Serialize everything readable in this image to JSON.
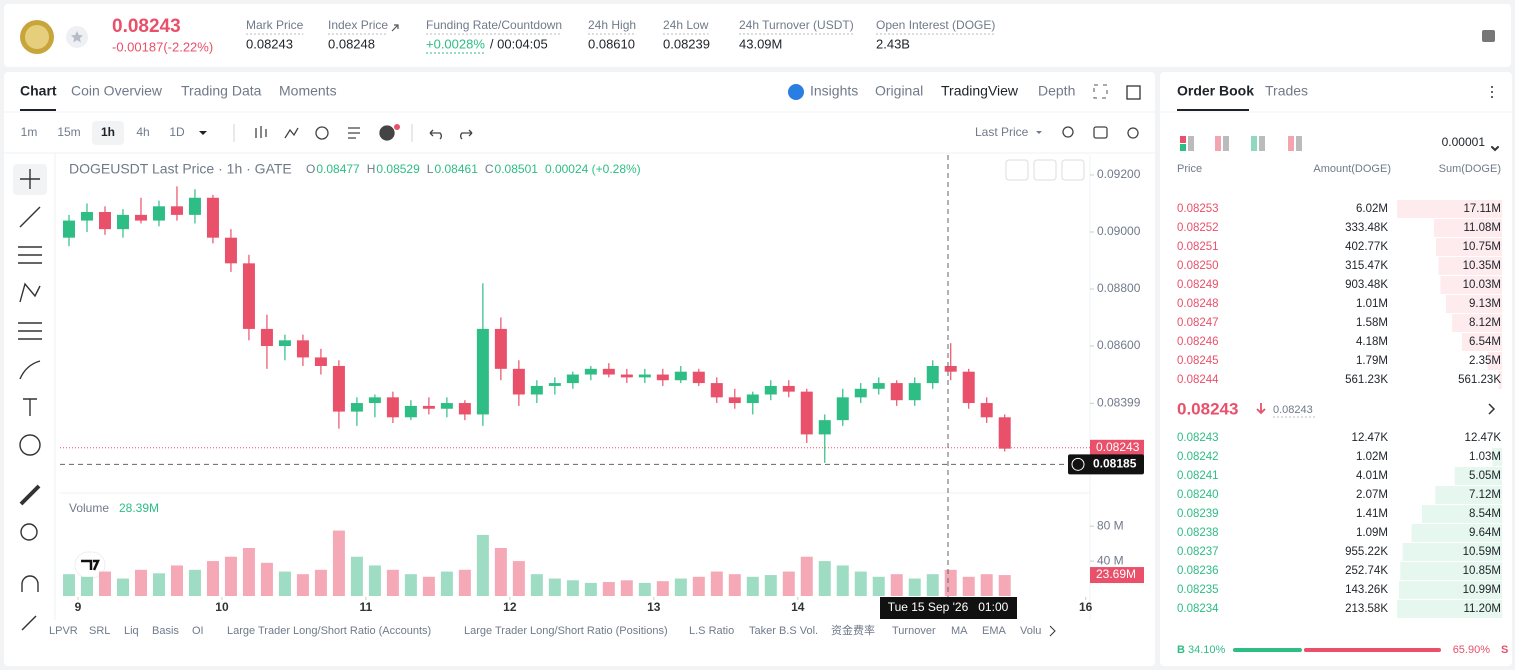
{
  "header": {
    "price": "0.08243",
    "change": "-0.00187(-2.22%)",
    "stats": [
      {
        "label": "Mark Price",
        "value": "0.08243"
      },
      {
        "label": "Index Price",
        "value": "0.08248"
      },
      {
        "label": "Funding Rate/Countdown",
        "value": "+0.0028%",
        "countdown": "/ 00:04:05"
      },
      {
        "label": "24h High",
        "value": "0.08610"
      },
      {
        "label": "24h Low",
        "value": "0.08239"
      },
      {
        "label": "24h Turnover (USDT)",
        "value": "43.09M"
      },
      {
        "label": "Open Interest (DOGE)",
        "value": "2.43B"
      }
    ]
  },
  "tabs": [
    "Chart",
    "Coin Overview",
    "Trading Data",
    "Moments"
  ],
  "view_tabs": [
    "Insights",
    "Original",
    "TradingView",
    "Depth"
  ],
  "intervals": [
    "1m",
    "15m",
    "1h",
    "4h",
    "1D"
  ],
  "price_type": "Last Price",
  "legend": {
    "symbol": "DOGEUSDT Last Price · 1h · GATE",
    "o_label": "O",
    "o": "0.08477",
    "h_label": "H",
    "h": "0.08529",
    "l_label": "L",
    "l": "0.08461",
    "c_label": "C",
    "c": "0.08501",
    "change": "0.00024 (+0.28%)"
  },
  "last_price_tag": 0.08243,
  "crosshair_price": 0.08185,
  "crosshair_time": "Tue 15 Sep '26   01:00",
  "indicators": [
    "LPVR",
    "SRL",
    "Liq",
    "Basis",
    "OI",
    "Large Trader Long/Short Ratio (Accounts)",
    "Large Trader Long/Short Ratio (Positions)",
    "L.S Ratio",
    "Taker B.S Vol.",
    "资金费率",
    "Turnover",
    "MA",
    "EMA",
    "Volu"
  ],
  "chart_data": {
    "type": "candlestick",
    "up_color": "#2ebd85",
    "down_color": "#e9506a",
    "x": [
      8.9375,
      9.0625,
      9.1875,
      9.3125,
      9.4375,
      9.5625,
      9.6875,
      9.8125,
      9.9375,
      10.0625,
      10.1875,
      10.3125,
      10.4375,
      10.5625,
      10.6875,
      10.8125,
      10.9375,
      11.0625,
      11.1875,
      11.3125,
      11.4375,
      11.5625,
      11.6875,
      11.8125,
      11.9375,
      12.0625,
      12.1875,
      12.3125,
      12.4375,
      12.5625,
      12.6875,
      12.8125,
      12.9375,
      13.0625,
      13.1875,
      13.3125,
      13.4375,
      13.5625,
      13.6875,
      13.8125,
      13.9375,
      14.0625,
      14.1875,
      14.3125,
      14.4375,
      14.5625,
      14.6875,
      14.8125,
      14.9375,
      15.0625,
      15.1875,
      15.3125,
      15.4375
    ],
    "open": [
      0.0898,
      0.0904,
      0.0907,
      0.0901,
      0.0906,
      0.0904,
      0.0909,
      0.0906,
      0.0912,
      0.0898,
      0.0889,
      0.0866,
      0.086,
      0.0862,
      0.0856,
      0.0853,
      0.0837,
      0.084,
      0.0842,
      0.0835,
      0.0839,
      0.0838,
      0.084,
      0.0836,
      0.0866,
      0.0852,
      0.0843,
      0.0846,
      0.0847,
      0.085,
      0.0852,
      0.085,
      0.0849,
      0.085,
      0.0848,
      0.0851,
      0.0847,
      0.0842,
      0.084,
      0.0843,
      0.0846,
      0.0844,
      0.0829,
      0.0834,
      0.0842,
      0.0845,
      0.0847,
      0.0841,
      0.0847,
      0.0853,
      0.0851,
      0.084,
      0.0835
    ],
    "high": [
      0.0906,
      0.091,
      0.0909,
      0.0908,
      0.0912,
      0.0911,
      0.0916,
      0.0915,
      0.0913,
      0.0901,
      0.0892,
      0.0871,
      0.0864,
      0.0864,
      0.0859,
      0.0855,
      0.0842,
      0.0843,
      0.0844,
      0.0841,
      0.0842,
      0.0842,
      0.0841,
      0.0882,
      0.087,
      0.0855,
      0.0848,
      0.0849,
      0.0851,
      0.0853,
      0.0854,
      0.0852,
      0.0852,
      0.0852,
      0.0853,
      0.0852,
      0.0849,
      0.0845,
      0.0844,
      0.0848,
      0.0848,
      0.0845,
      0.0836,
      0.0845,
      0.0847,
      0.0849,
      0.0848,
      0.0849,
      0.0855,
      0.0861,
      0.0852,
      0.0842,
      0.0836
    ],
    "low": [
      0.0895,
      0.09,
      0.0899,
      0.0898,
      0.0903,
      0.0902,
      0.0904,
      0.0903,
      0.0896,
      0.0886,
      0.0862,
      0.0852,
      0.0855,
      0.0853,
      0.085,
      0.0831,
      0.0832,
      0.0835,
      0.0833,
      0.0834,
      0.0836,
      0.0835,
      0.0834,
      0.0832,
      0.0848,
      0.0839,
      0.084,
      0.0843,
      0.0845,
      0.0848,
      0.0849,
      0.0847,
      0.0847,
      0.0846,
      0.0847,
      0.0846,
      0.084,
      0.0838,
      0.0836,
      0.0841,
      0.0842,
      0.0826,
      0.0819,
      0.0832,
      0.084,
      0.0843,
      0.0839,
      0.0839,
      0.0845,
      0.0848,
      0.0838,
      0.0833,
      0.0823
    ],
    "close": [
      0.0904,
      0.0907,
      0.0901,
      0.0906,
      0.0904,
      0.0909,
      0.0906,
      0.0912,
      0.0898,
      0.0889,
      0.0866,
      0.086,
      0.0862,
      0.0856,
      0.0853,
      0.0837,
      0.084,
      0.0842,
      0.0835,
      0.0839,
      0.0838,
      0.084,
      0.0836,
      0.0866,
      0.0852,
      0.0843,
      0.0846,
      0.0847,
      0.085,
      0.0852,
      0.085,
      0.0849,
      0.085,
      0.0848,
      0.0851,
      0.0847,
      0.0842,
      0.084,
      0.0843,
      0.0846,
      0.0844,
      0.0829,
      0.0834,
      0.0842,
      0.0845,
      0.0847,
      0.0841,
      0.0847,
      0.0853,
      0.0851,
      0.084,
      0.0835,
      0.0824
    ],
    "xlim": [
      8.875,
      16.03
    ],
    "xticks": [
      9,
      10,
      11,
      12,
      13,
      14,
      15,
      16
    ],
    "ylim": [
      0.08095,
      0.0927
    ],
    "yticks": [
      {
        "value": 0.092,
        "label": "0.09200"
      },
      {
        "value": 0.09,
        "label": "0.09000"
      },
      {
        "value": 0.088,
        "label": "0.08800"
      },
      {
        "value": 0.086,
        "label": "0.08600"
      },
      0.08399
    ],
    "volume": {
      "name": "Volume",
      "legend_value": "28.39M",
      "last_tag": "23.69M",
      "values": [
        25,
        22,
        28,
        20,
        30,
        26,
        35,
        30,
        40,
        45,
        55,
        38,
        28,
        25,
        30,
        75,
        45,
        35,
        30,
        25,
        22,
        28,
        30,
        70,
        55,
        40,
        25,
        20,
        18,
        15,
        16,
        18,
        15,
        17,
        20,
        22,
        28,
        25,
        22,
        24,
        28,
        45,
        40,
        35,
        28,
        22,
        25,
        20,
        25,
        30,
        22,
        25,
        24
      ],
      "ylim": [
        0,
        110
      ],
      "yticks": [
        {
          "value": 40,
          "label": "40 M"
        },
        {
          "value": 80,
          "label": "80 M"
        }
      ]
    }
  },
  "order_book": {
    "tabs": [
      "Order Book",
      "Trades"
    ],
    "precision": "0.00001",
    "headers": [
      "Price",
      "Amount(DOGE)",
      "Sum(DOGE)"
    ],
    "asks": {
      "prices": [
        "0.08253",
        "0.08252",
        "0.08251",
        "0.08250",
        "0.08249",
        "0.08248",
        "0.08247",
        "0.08246",
        "0.08245",
        "0.08244"
      ],
      "amounts": [
        "6.02M",
        "333.48K",
        "402.77K",
        "315.47K",
        "903.48K",
        "1.01M",
        "1.58M",
        "4.18M",
        "1.79M",
        "561.23K"
      ],
      "sums": [
        17.11,
        11.08,
        10.75,
        10.35,
        10.03,
        9.13,
        8.12,
        6.54,
        2.35,
        0.56123
      ],
      "sum_labels": [
        "17.11M",
        "11.08M",
        "10.75M",
        "10.35M",
        "10.03M",
        "9.13M",
        "8.12M",
        "6.54M",
        "2.35M",
        "561.23K"
      ]
    },
    "mid_price": "0.08243",
    "mark_price": "0.08243",
    "bids": {
      "prices": [
        "0.08243",
        "0.08242",
        "0.08241",
        "0.08240",
        "0.08239",
        "0.08238",
        "0.08237",
        "0.08236",
        "0.08235",
        "0.08234"
      ],
      "amounts": [
        "12.47K",
        "1.02M",
        "4.01M",
        "2.07M",
        "1.41M",
        "1.09M",
        "955.22K",
        "252.74K",
        "143.26K",
        "213.58K"
      ],
      "sums": [
        0.01247,
        1.03,
        5.05,
        7.12,
        8.54,
        9.64,
        10.59,
        10.85,
        10.99,
        11.2
      ],
      "sum_labels": [
        "12.47K",
        "1.03M",
        "5.05M",
        "7.12M",
        "8.54M",
        "9.64M",
        "10.59M",
        "10.85M",
        "10.99M",
        "11.20M"
      ]
    },
    "ratio": {
      "buy_letter": "B",
      "buy": 34.1,
      "buy_label": "34.10%",
      "sell": 65.9,
      "sell_label": "65.90%",
      "sell_letter": "S"
    }
  }
}
